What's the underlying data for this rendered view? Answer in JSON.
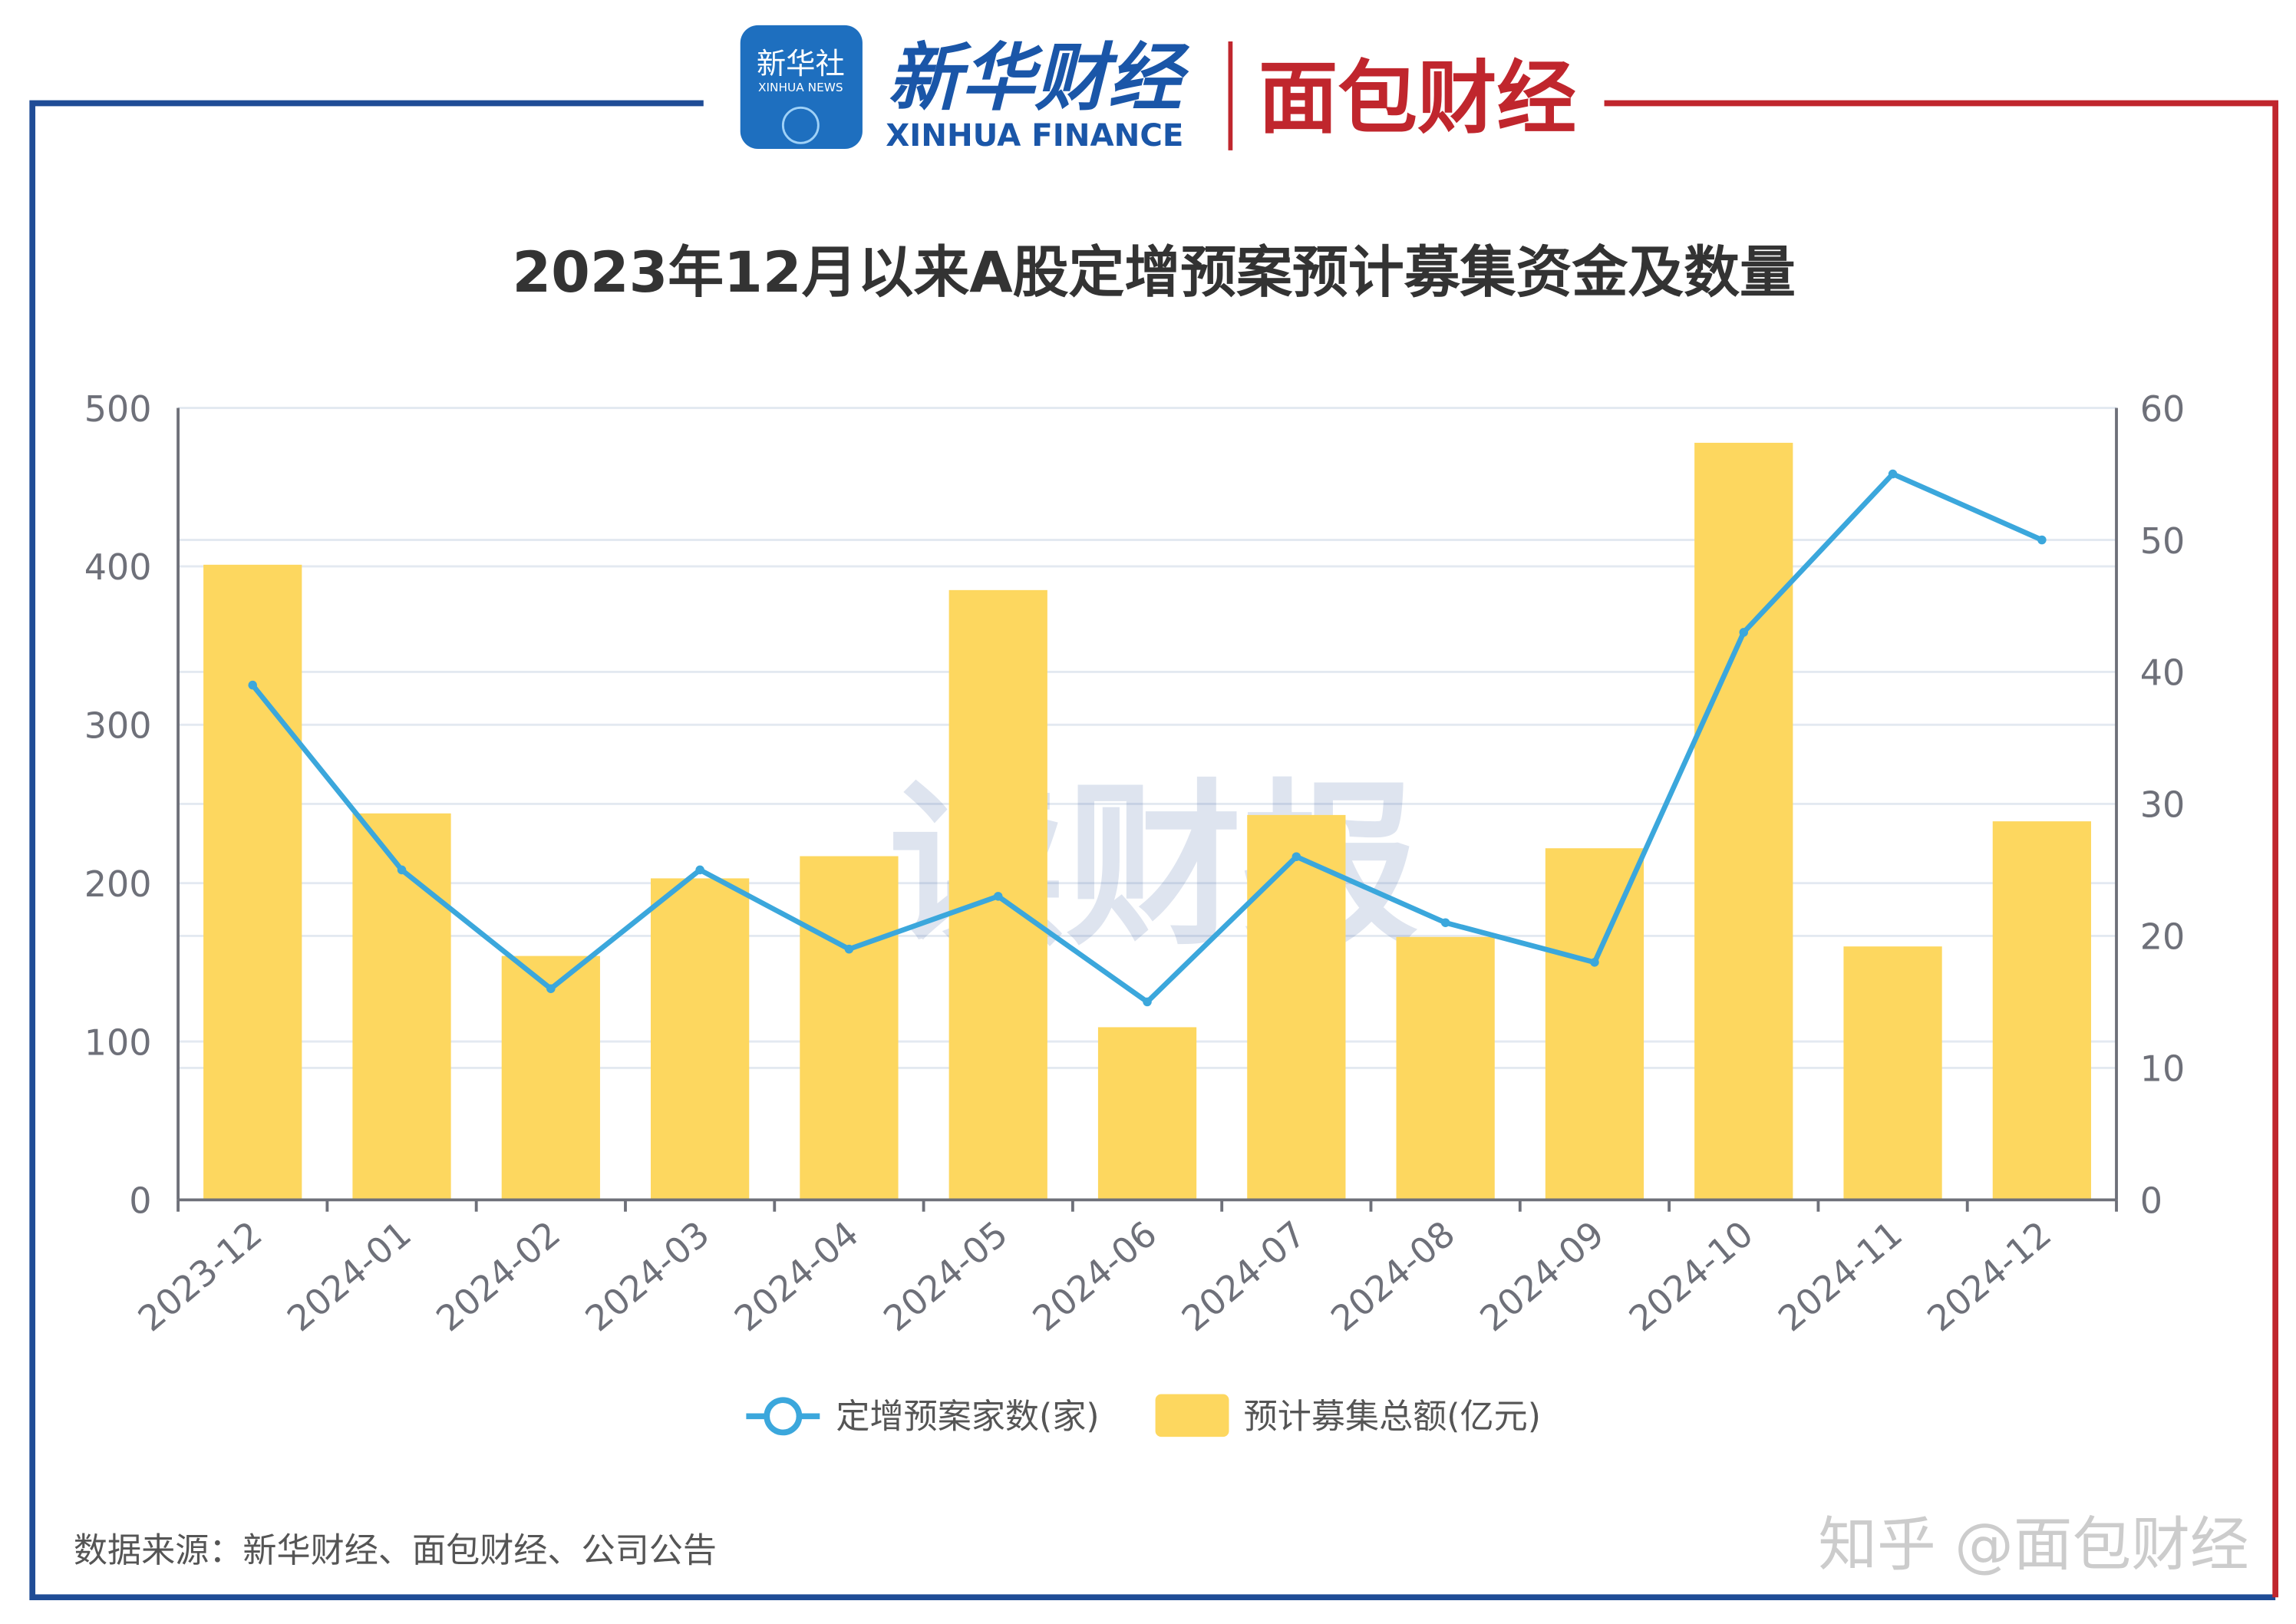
{
  "logos": {
    "xinhua_badge": "新华社",
    "xinhua_badge_sub": "XINHUA NEWS",
    "xinhua_finance_cn": "新华财经",
    "xinhua_finance_en": "XINHUA FINANCE",
    "mianbao": "面包财经"
  },
  "watermark": "读财报",
  "footer": {
    "source": "数据来源：新华财经、面包财经、公司公告",
    "credit": "知乎 @面包财经"
  },
  "colors": {
    "bar": "#FDD75F",
    "line": "#3BA7DC",
    "frame_left": "#1F4C96",
    "frame_right": "#C0262D",
    "grid": "#E3E9F1",
    "axis": "#6E7079",
    "tick_text": "#6E7079",
    "title": "#333333"
  },
  "chart_data": {
    "type": "bar+line",
    "title": "2023年12月以来A股定增预案预计募集资金及数量",
    "categories": [
      "2023-12",
      "2024-01",
      "2024-02",
      "2024-03",
      "2024-04",
      "2024-05",
      "2024-06",
      "2024-07",
      "2024-08",
      "2024-09",
      "2024-10",
      "2024-11",
      "2024-12"
    ],
    "series": [
      {
        "name": "定增预案家数(家)",
        "type": "line",
        "axis": "right",
        "values": [
          39,
          25,
          16,
          25,
          19,
          23,
          15,
          26,
          21,
          18,
          43,
          55,
          50
        ]
      },
      {
        "name": "预计募集总额(亿元)",
        "type": "bar",
        "axis": "left",
        "values": [
          401,
          244,
          154,
          203,
          217,
          385,
          109,
          243,
          166,
          222,
          478,
          160,
          239
        ]
      }
    ],
    "y_left": {
      "range": [
        0,
        500
      ],
      "ticks": [
        "0",
        "100",
        "200",
        "300",
        "400",
        "500"
      ]
    },
    "y_right": {
      "range": [
        0,
        60
      ],
      "ticks": [
        "0",
        "10",
        "20",
        "30",
        "40",
        "50",
        "60"
      ]
    },
    "grid": true,
    "legend_placement": "bottom"
  }
}
